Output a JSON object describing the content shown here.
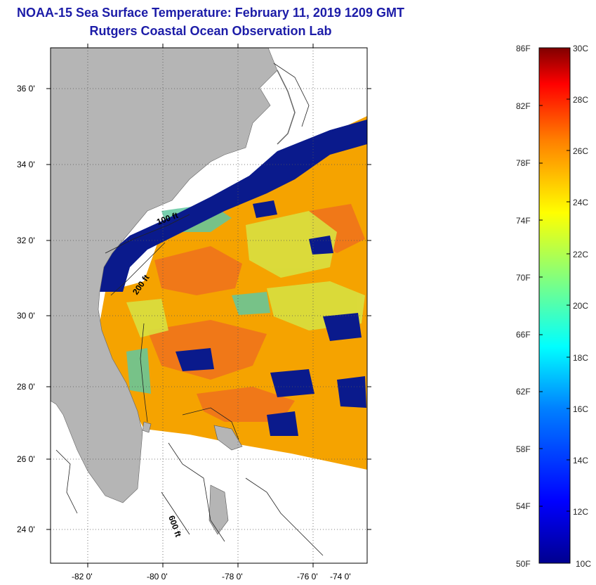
{
  "header": {
    "title": "NOAA-15 Sea Surface Temperature:  February 11, 2019 1209 GMT",
    "subtitle": "Rutgers Coastal Ocean Observation Lab"
  },
  "map": {
    "lat_labels": [
      "36 0'",
      "34 0'",
      "32 0'",
      "30 0'",
      "28 0'",
      "26 0'",
      "24 0'"
    ],
    "lon_labels": [
      "-82 0'",
      "-80 0'",
      "-78 0'",
      "-76 0'",
      "-74 0'"
    ],
    "contour_labels": [
      "100 ft",
      "200 ft",
      "600 ft"
    ],
    "colors": {
      "land": "#b5b5b5",
      "no_data": "#ffffff",
      "cold": "#0a1a8c",
      "warm": "#f5a300"
    }
  },
  "colorbar": {
    "fahrenheit_labels": [
      "86F",
      "82F",
      "78F",
      "74F",
      "70F",
      "66F",
      "62F",
      "58F",
      "54F",
      "50F"
    ],
    "celsius_labels": [
      "30C",
      "28C",
      "26C",
      "24C",
      "22C",
      "20C",
      "18C",
      "16C",
      "14C",
      "12C",
      "10C"
    ],
    "colors": [
      "#00008f",
      "#0000ff",
      "#0080ff",
      "#00ffff",
      "#80ff80",
      "#ffff00",
      "#ff8000",
      "#ff0000",
      "#800000"
    ]
  }
}
